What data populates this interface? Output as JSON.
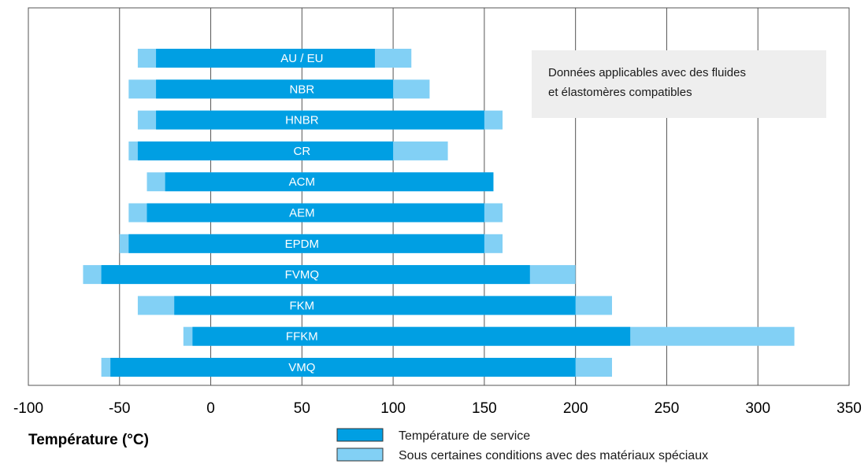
{
  "chart_data": {
    "type": "bar",
    "orientation": "horizontal",
    "categories": [
      "AU / EU",
      "NBR",
      "HNBR",
      "CR",
      "ACM",
      "AEM",
      "EPDM",
      "FVMQ",
      "FKM",
      "FFKM",
      "VMQ"
    ],
    "series": [
      {
        "name": "Température de service",
        "color": "#009fe3",
        "ranges": [
          [
            -30,
            90
          ],
          [
            -30,
            100
          ],
          [
            -30,
            150
          ],
          [
            -40,
            100
          ],
          [
            -25,
            155
          ],
          [
            -35,
            150
          ],
          [
            -45,
            150
          ],
          [
            -60,
            175
          ],
          [
            -20,
            200
          ],
          [
            -10,
            230
          ],
          [
            -55,
            200
          ]
        ]
      },
      {
        "name": "Sous certaines conditions avec des matériaux spéciaux",
        "color": "#82d0f5",
        "ranges": [
          [
            -40,
            110
          ],
          [
            -45,
            120
          ],
          [
            -40,
            160
          ],
          [
            -45,
            130
          ],
          [
            -35,
            155
          ],
          [
            -45,
            160
          ],
          [
            -50,
            160
          ],
          [
            -70,
            200
          ],
          [
            -40,
            220
          ],
          [
            -15,
            320
          ],
          [
            -60,
            220
          ]
        ]
      }
    ],
    "xlabel": "Température (°C)",
    "xlim": [
      -100,
      350
    ],
    "xticks": [
      -100,
      -50,
      0,
      50,
      100,
      150,
      200,
      250,
      300,
      350
    ],
    "grid": true,
    "legend": "bottom",
    "annotation": {
      "line1": "Données applicables avec des fluides",
      "line2": "et élastomères compatibles"
    }
  }
}
